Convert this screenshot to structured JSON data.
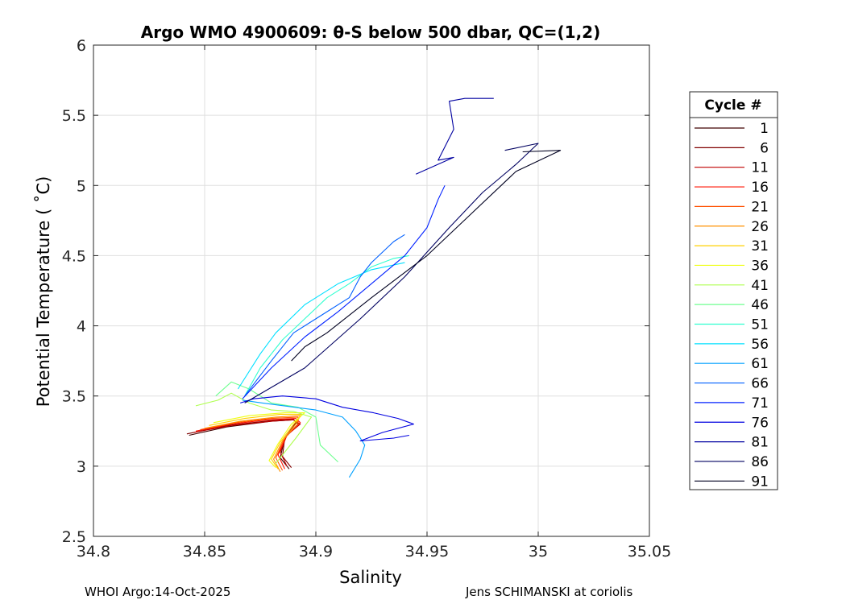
{
  "chart_data": {
    "type": "line",
    "title": "Argo WMO 4900609: θ-S below 500 dbar,  QC=(1,2)",
    "xlabel": "Salinity",
    "ylabel": "Potential Temperature ( ˚C)",
    "xlim": [
      34.8,
      35.05
    ],
    "ylim": [
      2.5,
      6
    ],
    "xticks": [
      34.8,
      34.85,
      34.9,
      34.95,
      35,
      35.05
    ],
    "xtick_labels": [
      "34.8",
      "34.85",
      "34.9",
      "34.95",
      "35",
      "35.05"
    ],
    "yticks": [
      2.5,
      3,
      3.5,
      4,
      4.5,
      5,
      5.5,
      6
    ],
    "ytick_labels": [
      "2.5",
      "3",
      "3.5",
      "4",
      "4.5",
      "5",
      "5.5",
      "6"
    ],
    "grid": true,
    "legend_title": "Cycle #",
    "legend_position": "right-outside",
    "colormap": "jet",
    "series": [
      {
        "name": "1",
        "color": "#400000",
        "x": [
          34.843,
          34.86,
          34.88,
          34.89,
          34.892,
          34.886,
          34.884,
          34.888
        ],
        "y": [
          3.22,
          3.28,
          3.32,
          3.33,
          3.3,
          3.2,
          3.06,
          2.98
        ]
      },
      {
        "name": "6",
        "color": "#800000",
        "x": [
          34.842,
          34.86,
          34.88,
          34.89,
          34.891,
          34.886,
          34.885,
          34.889
        ],
        "y": [
          3.23,
          3.29,
          3.325,
          3.335,
          3.31,
          3.2,
          3.07,
          2.99
        ]
      },
      {
        "name": "11",
        "color": "#c00000",
        "x": [
          34.845,
          34.862,
          34.88,
          34.89,
          34.893,
          34.887,
          34.884,
          34.887
        ],
        "y": [
          3.24,
          3.29,
          3.32,
          3.33,
          3.3,
          3.22,
          3.1,
          3.0
        ]
      },
      {
        "name": "16",
        "color": "#ff1000",
        "x": [
          34.846,
          34.862,
          34.878,
          34.891,
          34.893,
          34.887,
          34.883,
          34.886
        ],
        "y": [
          3.25,
          3.3,
          3.33,
          3.34,
          3.31,
          3.22,
          3.08,
          2.98
        ]
      },
      {
        "name": "21",
        "color": "#ff5000",
        "x": [
          34.848,
          34.864,
          34.88,
          34.892,
          34.892,
          34.886,
          34.882,
          34.885
        ],
        "y": [
          3.26,
          3.31,
          3.34,
          3.35,
          3.3,
          3.2,
          3.06,
          2.97
        ]
      },
      {
        "name": "26",
        "color": "#ff9000",
        "x": [
          34.85,
          34.866,
          34.882,
          34.893,
          34.891,
          34.885,
          34.881,
          34.884
        ],
        "y": [
          3.27,
          3.32,
          3.35,
          3.36,
          3.3,
          3.18,
          3.05,
          2.96
        ]
      },
      {
        "name": "31",
        "color": "#ffd000",
        "x": [
          34.852,
          34.868,
          34.884,
          34.894,
          34.89,
          34.884,
          34.88,
          34.883
        ],
        "y": [
          3.29,
          3.34,
          3.37,
          3.37,
          3.3,
          3.17,
          3.05,
          2.98
        ]
      },
      {
        "name": "36",
        "color": "#efff10",
        "x": [
          34.854,
          34.87,
          34.886,
          34.895,
          34.889,
          34.883,
          34.879,
          34.882
        ],
        "y": [
          3.31,
          3.36,
          3.38,
          3.38,
          3.3,
          3.16,
          3.04,
          2.99
        ]
      },
      {
        "name": "41",
        "color": "#afff50",
        "x": [
          34.846,
          34.856,
          34.862,
          34.87,
          34.88,
          34.89,
          34.898,
          34.891,
          34.885,
          34.882
        ],
        "y": [
          3.43,
          3.47,
          3.52,
          3.45,
          3.4,
          3.39,
          3.35,
          3.2,
          3.08,
          3.02
        ]
      },
      {
        "name": "46",
        "color": "#6fff90",
        "x": [
          34.855,
          34.862,
          34.87,
          34.88,
          34.892,
          34.9,
          34.902,
          34.91
        ],
        "y": [
          3.5,
          3.6,
          3.55,
          3.45,
          3.42,
          3.35,
          3.15,
          3.03
        ]
      },
      {
        "name": "51",
        "color": "#30ffd0",
        "x": [
          34.868,
          34.875,
          34.885,
          34.895,
          34.905,
          34.915,
          34.925,
          34.935,
          34.942
        ],
        "y": [
          3.5,
          3.7,
          3.9,
          4.05,
          4.2,
          4.3,
          4.42,
          4.48,
          4.5
        ]
      },
      {
        "name": "56",
        "color": "#00e0ff",
        "x": [
          34.865,
          34.875,
          34.882,
          34.895,
          34.91,
          34.925,
          34.94
        ],
        "y": [
          3.55,
          3.8,
          3.95,
          4.15,
          4.3,
          4.4,
          4.45
        ]
      },
      {
        "name": "61",
        "color": "#00a0ff",
        "x": [
          34.867,
          34.876,
          34.9,
          34.912,
          34.918,
          34.922,
          34.92,
          34.915
        ],
        "y": [
          3.47,
          3.45,
          3.4,
          3.35,
          3.25,
          3.15,
          3.05,
          2.92
        ]
      },
      {
        "name": "66",
        "color": "#0060ff",
        "x": [
          34.868,
          34.88,
          34.89,
          34.905,
          34.915,
          34.92,
          34.925,
          34.935,
          34.94
        ],
        "y": [
          3.5,
          3.75,
          3.95,
          4.1,
          4.2,
          4.35,
          4.45,
          4.6,
          4.65
        ]
      },
      {
        "name": "71",
        "color": "#0020ff",
        "x": [
          34.867,
          34.88,
          34.895,
          34.91,
          34.925,
          34.94,
          34.95,
          34.955,
          34.958
        ],
        "y": [
          3.48,
          3.7,
          3.92,
          4.1,
          4.3,
          4.5,
          4.7,
          4.9,
          5.0
        ]
      },
      {
        "name": "76",
        "color": "#0000e0",
        "x": [
          34.866,
          34.872,
          34.885,
          34.9,
          34.912,
          34.926,
          34.937,
          34.944,
          34.93,
          34.92,
          34.935,
          34.942
        ],
        "y": [
          3.45,
          3.48,
          3.5,
          3.48,
          3.42,
          3.38,
          3.34,
          3.3,
          3.24,
          3.18,
          3.2,
          3.22
        ]
      },
      {
        "name": "81",
        "color": "#0000a0",
        "x": [
          34.945,
          34.962,
          34.955,
          34.962,
          34.96,
          34.967,
          34.98
        ],
        "y": [
          5.08,
          5.2,
          5.18,
          5.4,
          5.6,
          5.62,
          5.62
        ]
      },
      {
        "name": "86",
        "color": "#000060",
        "x": [
          34.868,
          34.895,
          34.92,
          34.94,
          34.96,
          34.975,
          34.99,
          35.0,
          34.985
        ],
        "y": [
          3.45,
          3.7,
          4.05,
          4.35,
          4.7,
          4.95,
          5.15,
          5.3,
          5.25
        ]
      },
      {
        "name": "91",
        "color": "#000020",
        "x": [
          34.889,
          34.895,
          34.905,
          34.925,
          34.95,
          34.97,
          34.99,
          35.01,
          34.993
        ],
        "y": [
          3.75,
          3.85,
          3.95,
          4.2,
          4.5,
          4.8,
          5.1,
          5.25,
          5.24
        ]
      }
    ],
    "legend_entries": [
      "1",
      "6",
      "11",
      "16",
      "21",
      "26",
      "31",
      "36",
      "41",
      "46",
      "51",
      "56",
      "61",
      "66",
      "71",
      "76",
      "81",
      "86",
      "91"
    ]
  },
  "footer": {
    "left": "WHOI Argo:14-Oct-2025",
    "right": "Jens SCHIMANSKI at coriolis"
  }
}
